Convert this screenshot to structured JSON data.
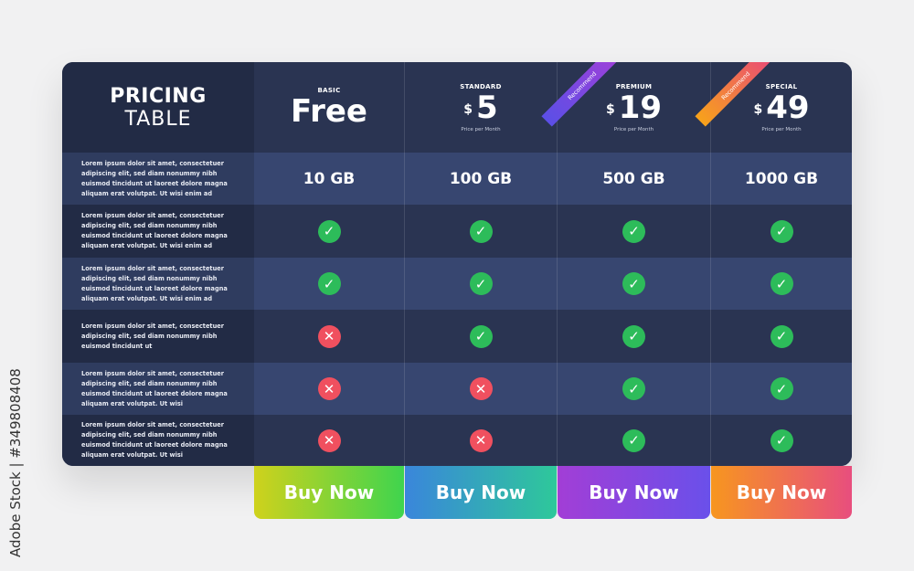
{
  "header": {
    "title_line1": "PRICING",
    "title_line2": "TABLE"
  },
  "plans": [
    {
      "name": "BASIC",
      "price": "Free",
      "currency": "",
      "period": "",
      "ribbon": "",
      "button": "Buy Now",
      "storage": "10 GB",
      "features": [
        true,
        true,
        false,
        false,
        false
      ]
    },
    {
      "name": "STANDARD",
      "price": "5",
      "currency": "$",
      "period": "Price per Month",
      "ribbon": "",
      "button": "Buy Now",
      "storage": "100 GB",
      "features": [
        true,
        true,
        true,
        false,
        false
      ]
    },
    {
      "name": "PREMIUM",
      "price": "19",
      "currency": "$",
      "period": "Price per Month",
      "ribbon": "Recommend",
      "button": "Buy Now",
      "storage": "500 GB",
      "features": [
        true,
        true,
        true,
        true,
        true
      ]
    },
    {
      "name": "SPECIAL",
      "price": "49",
      "currency": "$",
      "period": "Price per Month",
      "ribbon": "Recommend",
      "button": "Buy Now",
      "storage": "1000 GB",
      "features": [
        true,
        true,
        true,
        true,
        true
      ]
    }
  ],
  "rows": [
    "Lorem ipsum dolor sit amet, consectetuer adipiscing elit, sed diam nonummy nibh euismod tincidunt ut laoreet dolore magna aliquam erat volutpat. Ut wisi enim ad",
    "Lorem ipsum dolor sit amet, consectetuer adipiscing elit, sed diam nonummy nibh euismod tincidunt ut laoreet dolore magna aliquam erat volutpat. Ut wisi enim ad",
    "Lorem ipsum dolor sit amet, consectetuer adipiscing elit, sed diam nonummy nibh euismod tincidunt ut laoreet dolore magna aliquam erat volutpat. Ut wisi enim ad",
    "Lorem ipsum dolor sit amet, consectetuer adipiscing elit, sed diam nonummy nibh euismod tincidunt ut",
    "Lorem ipsum dolor sit amet, consectetuer adipiscing elit, sed diam nonummy nibh euismod tincidunt ut laoreet dolore magna aliquam erat volutpat. Ut wisi",
    "Lorem ipsum dolor sit amet, consectetuer adipiscing elit, sed diam nonummy nibh euismod tincidunt ut laoreet dolore magna aliquam erat volutpat. Ut wisi"
  ],
  "icons": {
    "included": "check-icon",
    "excluded": "x-icon"
  },
  "colors": {
    "check": "#2dbc5a",
    "cross": "#f0505f"
  },
  "watermark": "Adobe Stock | #349808408"
}
